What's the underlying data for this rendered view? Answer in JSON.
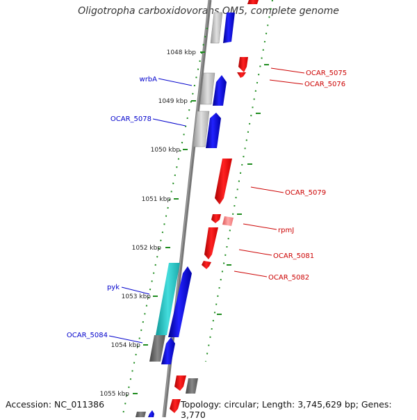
{
  "title": "Oligotropha carboxidovorans OM5, complete genome",
  "footer": {
    "accession": "Accession: NC_011386",
    "topology": "Topology: circular; Length: 3,745,629 bp; Genes: 3,770"
  },
  "colors": {
    "backbone": "#777777",
    "plus_strand": "#0000ee",
    "minus_strand": "#ee0000",
    "rna": "#22c8c8",
    "pseudo": "#777777",
    "ticks": "#1e8c1e",
    "label_plus": "#0000cc",
    "label_minus": "#cc0000"
  },
  "kbp_ticks": [
    "1048 kbp",
    "1049 kbp",
    "1050 kbp",
    "1051 kbp",
    "1052 kbp",
    "1053 kbp",
    "1054 kbp",
    "1055 kbp"
  ],
  "gene_labels_plus": [
    "wrbA",
    "OCAR_5078",
    "pyk",
    "OCAR_5084"
  ],
  "gene_labels_minus": [
    "OCAR_5075",
    "OCAR_5076",
    "OCAR_5079",
    "rpmJ",
    "OCAR_5081",
    "OCAR_5082"
  ]
}
